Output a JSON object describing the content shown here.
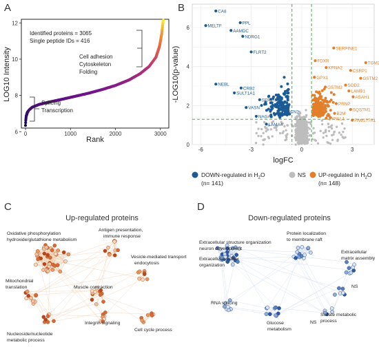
{
  "colors": {
    "down": "#1b5b95",
    "ns": "#bdbdbd",
    "up": "#e37f2a",
    "threshold": "#3a9a3a",
    "grid": "#ececec",
    "panel_bg": "#ffffff",
    "net_c_node": "#d9854a",
    "net_c_edge": "#f2cfb0",
    "net_d_node": "#4a74b4",
    "net_d_edge": "#cfdcef"
  },
  "panels": {
    "a": {
      "letter": "A"
    },
    "b": {
      "letter": "B"
    },
    "c": {
      "letter": "C"
    },
    "d": {
      "letter": "D"
    }
  },
  "chart_data": [
    {
      "type": "scatter",
      "panel": "A",
      "xlabel": "Rank",
      "ylabel": "LOG10 Intensity",
      "xlim": [
        0,
        3065
      ],
      "ylim": [
        6.2,
        12.2
      ],
      "x_ticks": [
        "0",
        "1000",
        "2000",
        "3000"
      ],
      "y_ticks": [
        "6",
        "8",
        "10",
        "12"
      ],
      "grid": false,
      "annotations": {
        "identified": "Identified proteins = 3065",
        "single": "Single peptide IDs = 416",
        "top_group": [
          "Cell adhesion",
          "Cytoskeleton",
          "Folding"
        ],
        "bottom_group": [
          "Splicing",
          "Transcription"
        ]
      },
      "curve": [
        [
          0,
          6.35
        ],
        [
          5,
          6.6
        ],
        [
          15,
          6.85
        ],
        [
          40,
          7.05
        ],
        [
          80,
          7.2
        ],
        [
          150,
          7.35
        ],
        [
          300,
          7.5
        ],
        [
          500,
          7.62
        ],
        [
          800,
          7.78
        ],
        [
          1100,
          7.95
        ],
        [
          1400,
          8.12
        ],
        [
          1700,
          8.32
        ],
        [
          2000,
          8.55
        ],
        [
          2300,
          8.85
        ],
        [
          2550,
          9.2
        ],
        [
          2750,
          9.6
        ],
        [
          2900,
          10.1
        ],
        [
          2980,
          10.7
        ],
        [
          3030,
          11.4
        ],
        [
          3055,
          12.0
        ],
        [
          3065,
          12.15
        ]
      ]
    },
    {
      "type": "scatter",
      "panel": "B",
      "xlabel": "logFC",
      "ylabel": "-LOG10(p-value)",
      "xlim": [
        -6.5,
        4.3
      ],
      "ylim": [
        0,
        7.2
      ],
      "x_ticks": [
        "-6",
        "-3",
        "0",
        "3"
      ],
      "y_ticks": [
        "0",
        "2",
        "4",
        "6"
      ],
      "grid": true,
      "thresholds": {
        "logfc": [
          -0.58,
          0.58
        ],
        "neglog10p": 1.3
      },
      "labels_down": [
        {
          "name": "CA8",
          "x": -5.1,
          "y": 6.85
        },
        {
          "name": "MELTF",
          "x": -5.7,
          "y": 6.1
        },
        {
          "name": "PPL",
          "x": -3.65,
          "y": 6.25
        },
        {
          "name": "AAMDC",
          "x": -4.2,
          "y": 5.85
        },
        {
          "name": "NDRG1",
          "x": -3.5,
          "y": 5.55
        },
        {
          "name": "FLRT2",
          "x": -3.0,
          "y": 4.75
        },
        {
          "name": "NEBL",
          "x": -5.1,
          "y": 3.1
        },
        {
          "name": "CRB2",
          "x": -3.6,
          "y": 2.9
        },
        {
          "name": "SULT1A1",
          "x": -4.0,
          "y": 2.65
        },
        {
          "name": "SERPINB5",
          "x": -2.5,
          "y": 2.3
        },
        {
          "name": "VASN",
          "x": -3.3,
          "y": 1.9
        },
        {
          "name": "NAGA",
          "x": -2.7,
          "y": 1.45
        },
        {
          "name": "LAMA4",
          "x": -2.1,
          "y": 1.05
        },
        {
          "name": "CCN2",
          "x": -1.0,
          "y": 1.7
        }
      ],
      "labels_up": [
        {
          "name": "SERPINE1",
          "x": 1.9,
          "y": 4.95
        },
        {
          "name": "TGM2",
          "x": 3.8,
          "y": 4.2
        },
        {
          "name": "FDXR",
          "x": 0.8,
          "y": 4.3
        },
        {
          "name": "KPNA2",
          "x": 1.45,
          "y": 3.95
        },
        {
          "name": "CSRP1",
          "x": 2.9,
          "y": 3.8
        },
        {
          "name": "GPX1",
          "x": 0.75,
          "y": 3.45
        },
        {
          "name": "GSTM2",
          "x": 3.5,
          "y": 3.4
        },
        {
          "name": "GSTM3",
          "x": 1.4,
          "y": 2.95
        },
        {
          "name": "SOD2",
          "x": 2.6,
          "y": 3.05
        },
        {
          "name": "LAMB1",
          "x": 2.8,
          "y": 2.75
        },
        {
          "name": "ASAH1",
          "x": 3.05,
          "y": 2.45
        },
        {
          "name": "PRNP",
          "x": 2.05,
          "y": 2.1
        },
        {
          "name": "SQSTM1",
          "x": 2.9,
          "y": 1.8
        },
        {
          "name": "B2M",
          "x": 1.95,
          "y": 1.6
        },
        {
          "name": "DYNLL1",
          "x": 1.45,
          "y": 1.35
        },
        {
          "name": "FAM177A1",
          "x": 3.0,
          "y": 1.25
        }
      ],
      "legend": {
        "down_label": "DOWN-regulated in H",
        "down_count": "(n= 141)",
        "ns_label": "NS",
        "up_label": "UP-regulated in H",
        "up_count": "(n= 148)",
        "subscript": "2",
        "o_label": "O"
      }
    }
  ],
  "network_c": {
    "title": "Up-regulated proteins",
    "labels": [
      "Oxidative phosphorylation",
      "hydroxide/glutathione metabolism",
      "Antigen presentation,",
      "immune response",
      "Vesicle-mediated transport",
      "endocytosis",
      "Mitochondrial",
      "translation",
      "Muscle contraction",
      "Integrin signaling",
      "Cell cycle process",
      "Nucleoside/nucleotide",
      "metabolic process"
    ]
  },
  "network_d": {
    "title": "Down-regulated proteins",
    "labels": [
      "Extracellular structure organization",
      "neuron development",
      "Protein localization",
      "to membrane raft",
      "Extracellular",
      "matrix assembly",
      "Extracellular matrix",
      "organization",
      "NS",
      "RNA splicing",
      "Glucose",
      "metabolism",
      "NS",
      "Sulfate metabolic",
      "process"
    ]
  }
}
